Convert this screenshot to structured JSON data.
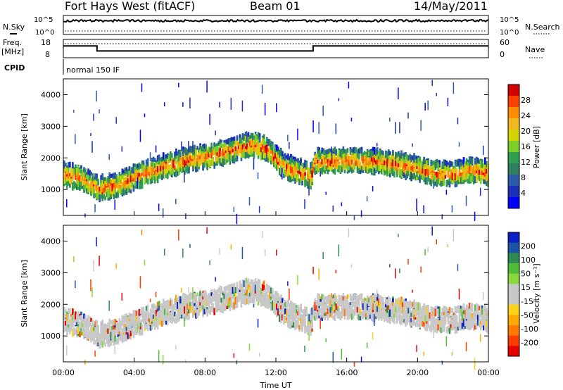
{
  "header": {
    "title": "Fort Hays West (fitACF)",
    "beam": "Beam 01",
    "date": "14/May/2011"
  },
  "top_panels": {
    "noise_left_label": "N.Sky",
    "noise_right_label": "N.Search",
    "noise_left_ticks": [
      "10^5",
      "10^0"
    ],
    "noise_right_ticks": [
      "10^5",
      "10^0"
    ],
    "freq_label_1": "Freq.",
    "freq_label_2": "[MHz]",
    "freq_ticks": [
      "18",
      "8"
    ],
    "nave_label": "Nave",
    "nave_ticks": [
      "60",
      "0"
    ],
    "cpid_label": "CPID",
    "cpid_value": "normal 150 IF"
  },
  "colorbars": {
    "power": {
      "label": "Power [dB]",
      "ticks": [
        "28",
        "24",
        "20",
        "16",
        "12",
        "8",
        "4"
      ],
      "colors": [
        "#d40000",
        "#ff4000",
        "#ff8c00",
        "#f2b81f",
        "#d4d400",
        "#78d028",
        "#2f9e4f",
        "#2f7f5f",
        "#2b5aa8",
        "#1d2fb8",
        "#0000ff"
      ]
    },
    "velocity": {
      "label": "Velocity [m s⁻¹]",
      "ticks": [
        "200",
        "100",
        "50",
        "15",
        "-15",
        "-50",
        "-100",
        "-200"
      ],
      "colors": [
        "#0a1fc8",
        "#1e54a6",
        "#2e8a4e",
        "#4fbd3a",
        "#8ad83a",
        "#c8c8c8",
        "#c8c8c8",
        "#ffd21a",
        "#ffaa00",
        "#ff7a00",
        "#ff3c00",
        "#e60000"
      ]
    }
  },
  "chart_data": {
    "type": "heatmap",
    "title": "Fort Hays West (fitACF)",
    "xlabel": "Time UT",
    "ylabel": "Slant Range [km]",
    "xticks": [
      "00:00",
      "04:00",
      "08:00",
      "12:00",
      "16:00",
      "20:00",
      "00:00"
    ],
    "yticks": [
      "1000",
      "2000",
      "3000",
      "4000"
    ],
    "xlim_hours": [
      0,
      24
    ],
    "ylim_km": [
      180,
      4500
    ],
    "frequency_mhz": [
      {
        "from_hours": 0,
        "to_hours": 1.9,
        "value": 15
      },
      {
        "from_hours": 1.9,
        "to_hours": 14.1,
        "value": 12
      },
      {
        "from_hours": 14.1,
        "to_hours": 24,
        "value": 15
      }
    ],
    "main_band_km": [
      [
        0.0,
        1450
      ],
      [
        1.0,
        1350
      ],
      [
        2.0,
        1000
      ],
      [
        3.0,
        1100
      ],
      [
        4.0,
        1350
      ],
      [
        5.0,
        1550
      ],
      [
        6.0,
        1750
      ],
      [
        7.0,
        1900
      ],
      [
        8.0,
        2000
      ],
      [
        9.0,
        2150
      ],
      [
        10.0,
        2300
      ],
      [
        10.7,
        2400
      ],
      [
        11.5,
        2250
      ],
      [
        12.5,
        1700
      ],
      [
        14.0,
        1400
      ],
      [
        14.2,
        1850
      ],
      [
        16.0,
        1900
      ],
      [
        18.0,
        1850
      ],
      [
        19.5,
        1700
      ],
      [
        21.0,
        1500
      ],
      [
        22.0,
        1450
      ],
      [
        23.0,
        1600
      ],
      [
        24.0,
        1500
      ]
    ],
    "panels": [
      {
        "name": "Power [dB]",
        "ticks": [
          28,
          24,
          20,
          16,
          12,
          8,
          4
        ]
      },
      {
        "name": "Velocity [m s⁻¹]",
        "ticks": [
          200,
          100,
          50,
          15,
          -15,
          -50,
          -100,
          -200
        ]
      }
    ]
  }
}
